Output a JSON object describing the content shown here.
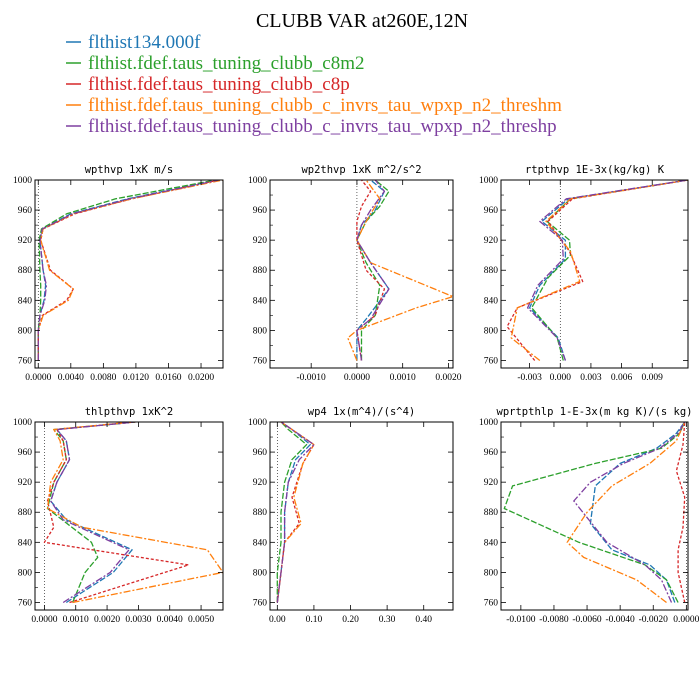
{
  "figure": {
    "title": "CLUBB VAR at260E,12N"
  },
  "legend": [
    {
      "label": "flthist134.000f",
      "color": "#1f77b4"
    },
    {
      "label": "flthist.fdef.taus_tuning_clubb_c8m2",
      "color": "#2ca02c"
    },
    {
      "label": "flthist.fdef.taus_tuning_clubb_c8p",
      "color": "#d62728"
    },
    {
      "label": "flthist.fdef.taus_tuning_clubb_c_invrs_tau_wpxp_n2_threshm",
      "color": "#ff7f0e"
    },
    {
      "label": "flthist.fdef.taus_tuning_clubb_c_invrs_tau_wpxp_n2_threshp",
      "color": "#7e3fa0"
    }
  ],
  "chart_data": [
    {
      "type": "line",
      "title": "wpthvp  1xK m/s",
      "xlim": [
        -0.0004,
        0.0227
      ],
      "ylim": [
        1000,
        750
      ],
      "xticks": [
        "0.0000",
        "0.0040",
        "0.0080",
        "0.0120",
        "0.0160",
        "0.0200"
      ],
      "xtick_values": [
        0,
        0.004,
        0.008,
        0.012,
        0.016,
        0.02
      ],
      "yticks": [
        "760",
        "800",
        "840",
        "880",
        "920",
        "960",
        "1000"
      ],
      "ytick_values": [
        760,
        800,
        840,
        880,
        920,
        960,
        1000
      ],
      "series": [
        {
          "color": "#1f77b4",
          "dash": "6,2",
          "x": [
            0.0,
            0.0,
            0.0002,
            0.0007,
            0.0009,
            0.0006,
            0.0002,
            0.0005,
            0.004,
            0.011,
            0.022
          ],
          "y": [
            760,
            800,
            820,
            840,
            860,
            880,
            920,
            935,
            955,
            975,
            1000
          ]
        },
        {
          "color": "#2ca02c",
          "dash": "6,2",
          "x": [
            0.0,
            0.0,
            0.0002,
            0.0003,
            0.0003,
            0.0002,
            0.0001,
            0.0004,
            0.0035,
            0.0095,
            0.0218
          ],
          "y": [
            760,
            800,
            820,
            840,
            860,
            880,
            920,
            935,
            955,
            975,
            1000
          ]
        },
        {
          "color": "#d62728",
          "dash": "3,2",
          "x": [
            0.0,
            0.0,
            0.0005,
            0.0035,
            0.0043,
            0.0015,
            0.0003,
            0.0006,
            0.0045,
            0.0115,
            0.0222
          ],
          "y": [
            760,
            800,
            820,
            840,
            855,
            880,
            920,
            935,
            955,
            975,
            1000
          ]
        },
        {
          "color": "#ff7f0e",
          "dash": "7,2,2,2",
          "x": [
            0.0,
            0.0,
            0.0006,
            0.0037,
            0.0043,
            0.0014,
            0.0003,
            0.0006,
            0.0043,
            0.0115,
            0.0227
          ],
          "y": [
            760,
            800,
            820,
            840,
            855,
            880,
            920,
            935,
            955,
            975,
            1000
          ]
        },
        {
          "color": "#7e3fa0",
          "dash": "7,2,2,2",
          "x": [
            0.0,
            0.0,
            0.0002,
            0.0008,
            0.001,
            0.0006,
            0.0002,
            0.0005,
            0.0042,
            0.0112,
            0.0222
          ],
          "y": [
            760,
            800,
            820,
            840,
            860,
            880,
            920,
            935,
            955,
            975,
            1000
          ]
        }
      ]
    },
    {
      "type": "line",
      "title": "wp2thvp  1xK m^2/s^2",
      "xlim": [
        -0.0019,
        0.0021
      ],
      "ylim": [
        1000,
        750
      ],
      "xticks": [
        "-0.0010",
        "0.0000",
        "0.0010",
        "0.0020"
      ],
      "xtick_values": [
        -0.001,
        0,
        0.001,
        0.002
      ],
      "yticks": [
        "760",
        "800",
        "840",
        "880",
        "920",
        "960",
        "1000"
      ],
      "ytick_values": [
        760,
        800,
        840,
        880,
        920,
        960,
        1000
      ],
      "series": [
        {
          "color": "#1f77b4",
          "dash": "6,2",
          "x": [
            0.0,
            0.0,
            0.0002,
            0.0007,
            0.0003,
            0.0,
            0.0001,
            0.0004,
            0.0006,
            0.0003
          ],
          "y": [
            760,
            800,
            815,
            855,
            890,
            920,
            940,
            960,
            985,
            1000
          ]
        },
        {
          "color": "#2ca02c",
          "dash": "6,2",
          "x": [
            0.0001,
            0.0001,
            0.0004,
            0.0005,
            0.0002,
            0.0,
            0.0002,
            0.0005,
            0.0007,
            0.0004
          ],
          "y": [
            760,
            800,
            820,
            860,
            890,
            920,
            945,
            965,
            985,
            1000
          ]
        },
        {
          "color": "#d62728",
          "dash": "3,2",
          "x": [
            0.0001,
            0.0,
            0.0004,
            0.0006,
            0.0002,
            0.0,
            0.0,
            0.0001,
            0.0003,
            0.0001
          ],
          "y": [
            760,
            800,
            820,
            855,
            880,
            920,
            945,
            965,
            985,
            1000
          ]
        },
        {
          "color": "#ff7f0e",
          "dash": "7,2,2,2",
          "x": [
            0.0,
            -0.0002,
            0.0,
            0.0013,
            0.0021,
            0.0003,
            0.0,
            0.0002,
            0.0005,
            0.0002
          ],
          "y": [
            760,
            790,
            800,
            830,
            845,
            890,
            920,
            945,
            975,
            1000
          ]
        },
        {
          "color": "#7e3fa0",
          "dash": "7,2,2,2",
          "x": [
            0.0001,
            0.0,
            0.0003,
            0.0007,
            0.0003,
            0.0,
            0.0001,
            0.0003,
            0.0006,
            0.0004
          ],
          "y": [
            760,
            800,
            815,
            855,
            890,
            920,
            940,
            960,
            985,
            1000
          ]
        }
      ]
    },
    {
      "type": "line",
      "title": "rtpthvp  1E-3x(kg/kg) K",
      "xlim": [
        -0.0058,
        0.0125
      ],
      "ylim": [
        1000,
        750
      ],
      "xticks": [
        "-0.003",
        "0.000",
        "0.003",
        "0.006",
        "0.009"
      ],
      "xtick_values": [
        -0.003,
        0,
        0.003,
        0.006,
        0.009
      ],
      "yticks": [
        "760",
        "800",
        "840",
        "880",
        "920",
        "960",
        "1000"
      ],
      "ytick_values": [
        760,
        800,
        840,
        880,
        920,
        960,
        1000
      ],
      "series": [
        {
          "color": "#1f77b4",
          "dash": "6,2",
          "x": [
            0.0005,
            -0.0002,
            -0.003,
            -0.002,
            0.0005,
            0.0005,
            -0.0018,
            0.0008,
            0.0125
          ],
          "y": [
            760,
            790,
            830,
            860,
            895,
            920,
            945,
            975,
            1000
          ]
        },
        {
          "color": "#2ca02c",
          "dash": "6,2",
          "x": [
            0.0003,
            -0.0003,
            -0.0028,
            -0.0012,
            0.001,
            0.0009,
            -0.0013,
            0.001,
            0.0125
          ],
          "y": [
            760,
            790,
            830,
            870,
            900,
            920,
            945,
            975,
            1000
          ]
        },
        {
          "color": "#d62728",
          "dash": "3,2",
          "x": [
            -0.0025,
            -0.0052,
            -0.0042,
            0.0022,
            0.0009,
            -0.0012,
            0.0012,
            0.0125
          ],
          "y": [
            760,
            805,
            830,
            865,
            905,
            945,
            975,
            1000
          ]
        },
        {
          "color": "#ff7f0e",
          "dash": "7,2,2,2",
          "x": [
            -0.002,
            -0.0048,
            -0.0042,
            0.0019,
            0.001,
            -0.0014,
            0.001,
            0.0125
          ],
          "y": [
            760,
            790,
            830,
            865,
            905,
            945,
            975,
            1000
          ]
        },
        {
          "color": "#7e3fa0",
          "dash": "7,2,2,2",
          "x": [
            0.0005,
            -0.0003,
            -0.0032,
            -0.0022,
            0.0003,
            0.0002,
            -0.002,
            0.0006,
            0.0125
          ],
          "y": [
            760,
            790,
            830,
            860,
            895,
            920,
            945,
            975,
            1000
          ]
        }
      ]
    },
    {
      "type": "line",
      "title": "thlpthvp  1xK^2",
      "xlim": [
        -0.0003,
        0.0057
      ],
      "ylim": [
        1000,
        750
      ],
      "xticks": [
        "0.0000",
        "0.0010",
        "0.0020",
        "0.0030",
        "0.0040",
        "0.0050"
      ],
      "xtick_values": [
        0,
        0.001,
        0.002,
        0.003,
        0.004,
        0.005
      ],
      "yticks": [
        "760",
        "800",
        "840",
        "880",
        "920",
        "960",
        "1000"
      ],
      "ytick_values": [
        760,
        800,
        840,
        880,
        920,
        960,
        1000
      ],
      "series": [
        {
          "color": "#1f77b4",
          "dash": "6,2",
          "x": [
            0.0007,
            0.0022,
            0.0028,
            0.0007,
            0.0002,
            0.0004,
            0.0008,
            0.0007,
            0.0004,
            0.0029
          ],
          "y": [
            760,
            800,
            830,
            870,
            895,
            920,
            950,
            975,
            990,
            1000
          ]
        },
        {
          "color": "#2ca02c",
          "dash": "6,2",
          "x": [
            0.0009,
            0.0013,
            0.0017,
            0.0015,
            0.0001,
            0.0003,
            0.0007,
            0.0006,
            0.0003,
            0.0029
          ],
          "y": [
            760,
            800,
            820,
            840,
            885,
            920,
            950,
            975,
            990,
            1000
          ]
        },
        {
          "color": "#d62728",
          "dash": "3,2",
          "x": [
            0.0008,
            0.0046,
            0.0,
            0.0003,
            0.0001,
            0.0003,
            0.0007,
            0.0006,
            0.0004,
            0.0029
          ],
          "y": [
            760,
            810,
            840,
            860,
            895,
            920,
            950,
            975,
            990,
            1000
          ]
        },
        {
          "color": "#ff7f0e",
          "dash": "7,2,2,2",
          "x": [
            0.0009,
            0.0057,
            0.0052,
            0.0012,
            0.0001,
            0.0002,
            0.0006,
            0.0005,
            0.0003,
            0.0028
          ],
          "y": [
            760,
            800,
            830,
            860,
            885,
            920,
            950,
            975,
            990,
            1000
          ]
        },
        {
          "color": "#7e3fa0",
          "dash": "7,2,2,2",
          "x": [
            0.0006,
            0.0021,
            0.0027,
            0.0006,
            0.0002,
            0.0004,
            0.0008,
            0.0007,
            0.0004,
            0.0029
          ],
          "y": [
            760,
            800,
            830,
            870,
            895,
            920,
            950,
            975,
            990,
            1000
          ]
        }
      ]
    },
    {
      "type": "line",
      "title": "wp4  1x(m^4)/(s^4)",
      "xlim": [
        -0.02,
        0.48
      ],
      "ylim": [
        1000,
        750
      ],
      "xticks": [
        "0.00",
        "0.10",
        "0.20",
        "0.30",
        "0.40"
      ],
      "xtick_values": [
        0,
        0.1,
        0.2,
        0.3,
        0.4
      ],
      "yticks": [
        "760",
        "800",
        "840",
        "880",
        "920",
        "960",
        "1000"
      ],
      "ytick_values": [
        760,
        800,
        840,
        880,
        920,
        960,
        1000
      ],
      "series": [
        {
          "color": "#1f77b4",
          "dash": "6,2",
          "x": [
            0.0,
            0.01,
            0.02,
            0.02,
            0.03,
            0.05,
            0.09,
            0.04,
            0.01
          ],
          "y": [
            760,
            800,
            840,
            880,
            920,
            950,
            970,
            990,
            1000
          ]
        },
        {
          "color": "#2ca02c",
          "dash": "6,2",
          "x": [
            0.0,
            0.0,
            0.01,
            0.01,
            0.02,
            0.04,
            0.08,
            0.03,
            0.01
          ],
          "y": [
            760,
            800,
            840,
            880,
            920,
            950,
            970,
            990,
            1000
          ]
        },
        {
          "color": "#d62728",
          "dash": "3,2",
          "x": [
            0.0,
            0.01,
            0.02,
            0.06,
            0.04,
            0.07,
            0.1,
            0.04,
            0.01
          ],
          "y": [
            760,
            800,
            840,
            865,
            900,
            945,
            970,
            990,
            1000
          ]
        },
        {
          "color": "#ff7f0e",
          "dash": "7,2,2,2",
          "x": [
            0.0,
            0.01,
            0.02,
            0.065,
            0.045,
            0.07,
            0.1,
            0.04,
            0.01
          ],
          "y": [
            760,
            800,
            840,
            865,
            900,
            945,
            970,
            990,
            1000
          ]
        },
        {
          "color": "#7e3fa0",
          "dash": "7,2,2,2",
          "x": [
            0.0,
            0.01,
            0.02,
            0.02,
            0.03,
            0.06,
            0.1,
            0.04,
            0.01
          ],
          "y": [
            760,
            800,
            840,
            880,
            920,
            950,
            970,
            990,
            1000
          ]
        }
      ]
    },
    {
      "type": "line",
      "title": "wprtpthlp  1-E-3x(m kg K)/(s kg)",
      "xlim": [
        -0.0112,
        0.0001
      ],
      "ylim": [
        1000,
        750
      ],
      "xticks": [
        "-0.0100",
        "-0.0080",
        "-0.0060",
        "-0.0040",
        "-0.0020",
        "0.0000"
      ],
      "xtick_values": [
        -0.01,
        -0.008,
        -0.006,
        -0.004,
        -0.002,
        0
      ],
      "yticks": [
        "760",
        "800",
        "840",
        "880",
        "920",
        "960",
        "1000"
      ],
      "ytick_values": [
        760,
        800,
        840,
        880,
        920,
        960,
        1000
      ],
      "series": [
        {
          "color": "#1f77b4",
          "dash": "6,2",
          "x": [
            -0.0007,
            -0.0012,
            -0.0022,
            -0.0045,
            -0.0058,
            -0.0055,
            -0.004,
            -0.0018,
            -0.0006,
            -0.0001
          ],
          "y": [
            760,
            790,
            810,
            830,
            865,
            915,
            945,
            965,
            985,
            1000
          ]
        },
        {
          "color": "#2ca02c",
          "dash": "6,2",
          "x": [
            -0.0005,
            -0.0012,
            -0.0025,
            -0.0065,
            -0.011,
            -0.0105,
            -0.0055,
            -0.0015,
            -0.0004,
            -0.0001
          ],
          "y": [
            760,
            790,
            810,
            840,
            885,
            915,
            945,
            965,
            985,
            1000
          ]
        },
        {
          "color": "#d62728",
          "dash": "3,2",
          "x": [
            -0.0001,
            -0.0005,
            -0.0005,
            -0.0002,
            -0.0001,
            -0.0006,
            -0.0002,
            -0.0001
          ],
          "y": [
            760,
            800,
            830,
            860,
            900,
            935,
            970,
            1000
          ]
        },
        {
          "color": "#ff7f0e",
          "dash": "7,2,2,2",
          "x": [
            -0.0012,
            -0.003,
            -0.0062,
            -0.0072,
            -0.006,
            -0.0045,
            -0.0022,
            -0.0006,
            -0.0001
          ],
          "y": [
            760,
            790,
            820,
            840,
            880,
            915,
            945,
            975,
            1000
          ]
        },
        {
          "color": "#7e3fa0",
          "dash": "7,2,2,2",
          "x": [
            -0.0009,
            -0.0015,
            -0.0025,
            -0.0048,
            -0.0068,
            -0.0058,
            -0.0038,
            -0.0016,
            -0.0005,
            -0.0001
          ],
          "y": [
            760,
            790,
            810,
            840,
            895,
            920,
            945,
            965,
            985,
            1000
          ]
        }
      ]
    }
  ]
}
